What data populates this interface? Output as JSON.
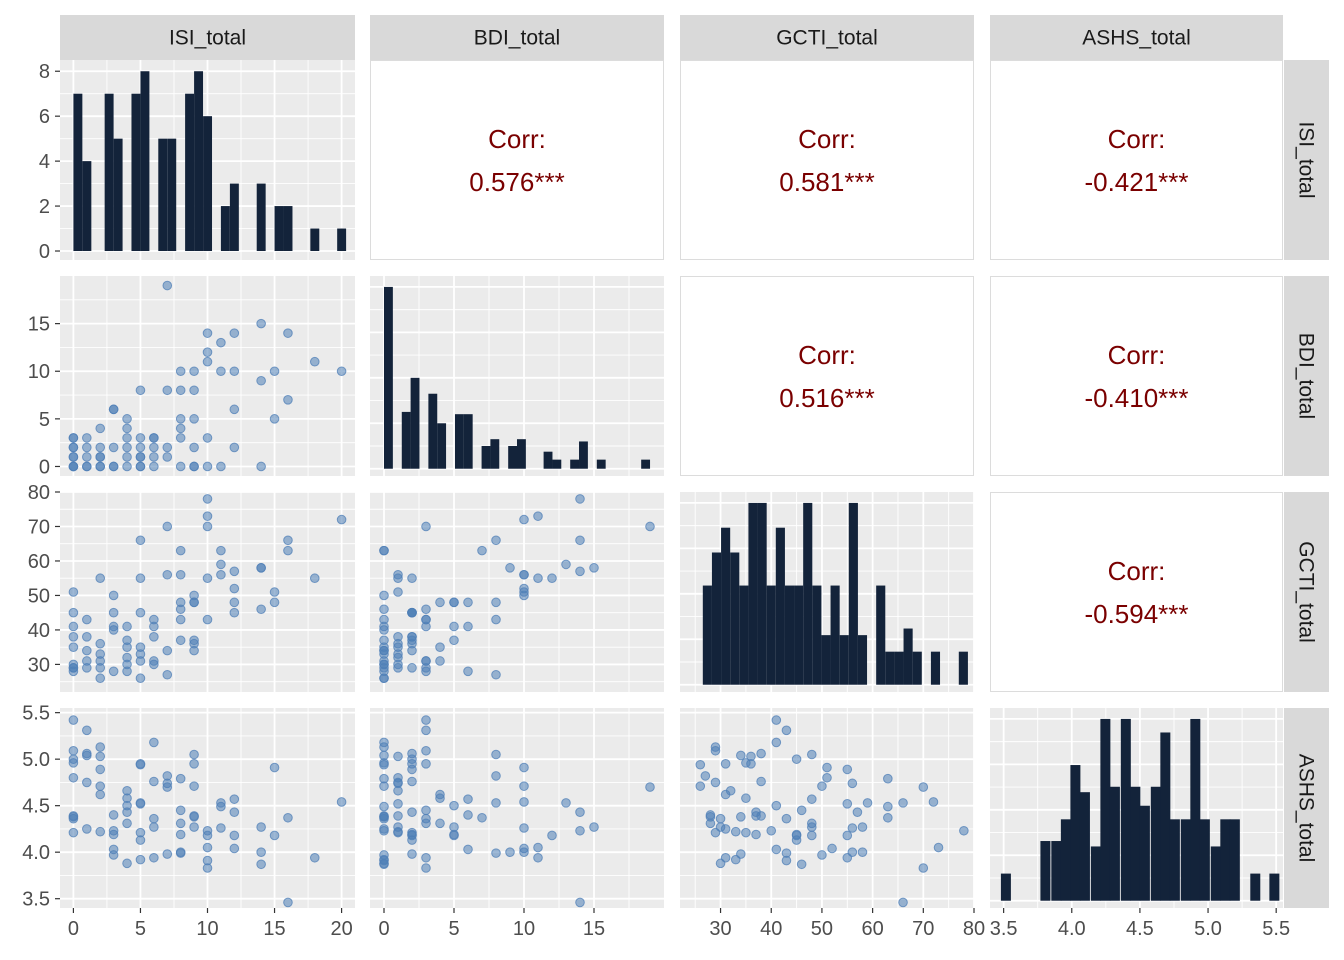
{
  "chart_data": {
    "type": "scatter-matrix",
    "variables": [
      "ISI_total",
      "BDI_total",
      "GCTI_total",
      "ASHS_total"
    ],
    "ranges": {
      "ISI_total": [
        -1,
        21
      ],
      "BDI_total": [
        -1,
        20
      ],
      "GCTI_total": [
        22,
        80
      ],
      "ASHS_total": [
        3.4,
        5.55
      ]
    },
    "ticks": {
      "ISI_total": [
        0,
        5,
        10,
        15,
        20
      ],
      "BDI_total": [
        0,
        5,
        10,
        15
      ],
      "GCTI_total": [
        30,
        40,
        50,
        60,
        70,
        80
      ],
      "ASHS_total": [
        3.5,
        4.0,
        4.5,
        5.0,
        5.5
      ]
    },
    "tick_labels": {
      "ISI_total": [
        "0",
        "5",
        "10",
        "15",
        "20"
      ],
      "BDI_total": [
        "0",
        "5",
        "10",
        "15"
      ],
      "GCTI_total": [
        "30",
        "40",
        "50",
        "60",
        "70",
        "80"
      ],
      "ASHS_total": [
        "3.5",
        "4.0",
        "4.5",
        "5.0",
        "5.5"
      ]
    },
    "diag_count_axis": {
      "range": [
        -0.4,
        8.5
      ],
      "ticks": [
        0,
        2,
        4,
        6,
        8
      ],
      "tick_labels": [
        "0",
        "2",
        "4",
        "6",
        "8"
      ]
    },
    "left_y_tick_labels": {
      "BDI_total": [
        "0",
        "5",
        "10",
        "15"
      ],
      "GCTI_total": [
        "30",
        "40",
        "50",
        "60",
        "70",
        "80"
      ],
      "ASHS_total": [
        "3.5",
        "4.0",
        "4.5",
        "5.0",
        "5.5"
      ]
    },
    "correlations": [
      {
        "row": "ISI_total",
        "col": "BDI_total",
        "label": "Corr:",
        "value": "0.576***"
      },
      {
        "row": "ISI_total",
        "col": "GCTI_total",
        "label": "Corr:",
        "value": "0.581***"
      },
      {
        "row": "ISI_total",
        "col": "ASHS_total",
        "label": "Corr:",
        "value": "-0.421***"
      },
      {
        "row": "BDI_total",
        "col": "GCTI_total",
        "label": "Corr:",
        "value": "0.516***"
      },
      {
        "row": "BDI_total",
        "col": "ASHS_total",
        "label": "Corr:",
        "value": "-0.410***"
      },
      {
        "row": "GCTI_total",
        "col": "ASHS_total",
        "label": "Corr:",
        "value": "-0.594***"
      }
    ],
    "histograms": {
      "ISI_total": {
        "bin_width": 0.667,
        "bins": [
          [
            0.0,
            7
          ],
          [
            0.67,
            4
          ],
          [
            2.33,
            7
          ],
          [
            3.0,
            5
          ],
          [
            4.33,
            7
          ],
          [
            5.0,
            8
          ],
          [
            6.33,
            5
          ],
          [
            7.0,
            5
          ],
          [
            8.33,
            7
          ],
          [
            9.0,
            8
          ],
          [
            9.67,
            6
          ],
          [
            11.0,
            2
          ],
          [
            11.67,
            3
          ],
          [
            13.67,
            3
          ],
          [
            15.0,
            2
          ],
          [
            15.67,
            2
          ],
          [
            17.67,
            1
          ],
          [
            19.67,
            1
          ]
        ]
      },
      "BDI_total": {
        "bin_width": 0.633,
        "bins": [
          [
            0.0,
            8
          ],
          [
            1.27,
            2.5
          ],
          [
            1.9,
            4
          ],
          [
            3.17,
            3.3
          ],
          [
            3.8,
            2
          ],
          [
            5.07,
            2.4
          ],
          [
            5.7,
            2.4
          ],
          [
            6.97,
            1
          ],
          [
            7.6,
            1.3
          ],
          [
            8.87,
            1
          ],
          [
            9.5,
            1.3
          ],
          [
            11.4,
            0.75
          ],
          [
            12.03,
            0.4
          ],
          [
            13.3,
            0.4
          ],
          [
            13.93,
            1.2
          ],
          [
            15.2,
            0.4
          ],
          [
            18.37,
            0.4
          ]
        ]
      },
      "GCTI_total": {
        "bin_width": 1.8,
        "bins": [
          [
            26.5,
            6
          ],
          [
            28.3,
            8
          ],
          [
            30.1,
            9.5
          ],
          [
            31.9,
            8
          ],
          [
            33.7,
            6
          ],
          [
            35.5,
            11
          ],
          [
            37.3,
            11
          ],
          [
            39.1,
            6
          ],
          [
            40.9,
            9.5
          ],
          [
            42.7,
            6
          ],
          [
            44.5,
            6
          ],
          [
            46.3,
            11
          ],
          [
            48.1,
            6
          ],
          [
            49.9,
            3
          ],
          [
            51.7,
            6
          ],
          [
            53.5,
            3
          ],
          [
            55.3,
            11
          ],
          [
            57.1,
            3
          ],
          [
            60.7,
            6
          ],
          [
            62.5,
            2
          ],
          [
            64.3,
            2
          ],
          [
            66.1,
            3.4
          ],
          [
            67.9,
            2
          ],
          [
            71.5,
            2
          ],
          [
            77.0,
            2
          ]
        ]
      },
      "ASHS_total": {
        "bin_width": 0.0733,
        "bins": [
          [
            3.48,
            1
          ],
          [
            3.77,
            2.2
          ],
          [
            3.85,
            2.2
          ],
          [
            3.92,
            3
          ],
          [
            3.99,
            5
          ],
          [
            4.06,
            4
          ],
          [
            4.14,
            2
          ],
          [
            4.21,
            6.7
          ],
          [
            4.28,
            4.2
          ],
          [
            4.36,
            6.7
          ],
          [
            4.43,
            4.2
          ],
          [
            4.5,
            3.5
          ],
          [
            4.58,
            4.2
          ],
          [
            4.65,
            6.2
          ],
          [
            4.72,
            3
          ],
          [
            4.8,
            3
          ],
          [
            4.87,
            6.7
          ],
          [
            4.94,
            3
          ],
          [
            5.02,
            2
          ],
          [
            5.09,
            3
          ],
          [
            5.16,
            3
          ],
          [
            5.31,
            1
          ],
          [
            5.45,
            1
          ]
        ]
      }
    },
    "points": {
      "ISI_total": [
        0,
        0,
        0,
        0,
        0,
        0,
        0,
        0,
        0,
        1,
        1,
        1,
        1,
        1,
        2,
        2,
        2,
        2,
        2,
        2,
        3,
        3,
        3,
        3,
        3,
        4,
        4,
        4,
        4,
        4,
        4,
        5,
        5,
        5,
        5,
        5,
        5,
        5,
        6,
        6,
        6,
        6,
        6,
        7,
        7,
        7,
        7,
        8,
        8,
        8,
        8,
        8,
        8,
        9,
        9,
        9,
        9,
        9,
        9,
        10,
        10,
        10,
        10,
        10,
        11,
        11,
        11,
        12,
        12,
        12,
        12,
        14,
        14,
        14,
        15,
        15,
        16,
        16,
        18,
        20
      ],
      "BDI_total": [
        0,
        1,
        2,
        3,
        0,
        2,
        0,
        1,
        3,
        0,
        2,
        1,
        0,
        3,
        0,
        1,
        0,
        2,
        1,
        4,
        6,
        0,
        2,
        6,
        0,
        4,
        1,
        5,
        0,
        3,
        2,
        0,
        8,
        1,
        2,
        3,
        0,
        1,
        0,
        2,
        3,
        3,
        1,
        19,
        8,
        2,
        1,
        3,
        0,
        10,
        8,
        5,
        4,
        0,
        10,
        8,
        0,
        2,
        5,
        12,
        14,
        3,
        11,
        0,
        10,
        13,
        0,
        6,
        14,
        10,
        2,
        0,
        9,
        15,
        5,
        10,
        7,
        14,
        11,
        10
      ],
      "GCTI_total": [
        30,
        51,
        29,
        41,
        28,
        45,
        35,
        38,
        29,
        34,
        38,
        29,
        31,
        43,
        29,
        36,
        26,
        55,
        33,
        31,
        28,
        50,
        45,
        41,
        40,
        35,
        32,
        41,
        30,
        28,
        37,
        26,
        66,
        55,
        45,
        31,
        33,
        35,
        41,
        38,
        43,
        31,
        30,
        70,
        27,
        34,
        56,
        46,
        63,
        56,
        43,
        37,
        48,
        37,
        50,
        48,
        34,
        36,
        48,
        55,
        78,
        70,
        73,
        43,
        56,
        59,
        63,
        48,
        57,
        52,
        45,
        46,
        58,
        58,
        48,
        51,
        63,
        66,
        55,
        72
      ],
      "ASHS_total": [
        4.36,
        4.8,
        4.21,
        5.42,
        4.38,
        5.0,
        4.96,
        4.39,
        5.09,
        5.04,
        5.06,
        4.75,
        4.25,
        5.31,
        5.13,
        5.03,
        4.71,
        4.89,
        4.22,
        4.62,
        4.4,
        3.97,
        4.19,
        4.03,
        4.23,
        4.58,
        4.66,
        4.5,
        3.88,
        4.31,
        4.43,
        4.94,
        4.53,
        4.52,
        4.13,
        4.95,
        3.92,
        4.21,
        5.18,
        4.76,
        4.36,
        3.94,
        4.27,
        4.7,
        4.82,
        3.98,
        4.74,
        4.45,
        4.79,
        4.0,
        3.99,
        4.19,
        4.31,
        4.39,
        4.71,
        5.05,
        4.38,
        4.95,
        4.27,
        4.18,
        4.23,
        3.83,
        4.05,
        3.91,
        4.26,
        4.53,
        4.49,
        4.57,
        4.43,
        4.04,
        4.18,
        3.87,
        4.0,
        4.27,
        4.18,
        4.91,
        4.37,
        3.46,
        3.94,
        4.54
      ]
    }
  }
}
